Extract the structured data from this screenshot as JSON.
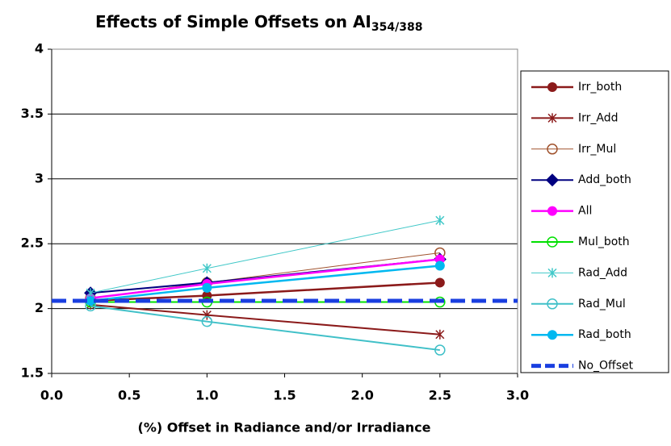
{
  "chart_data": {
    "type": "line",
    "title": "Effects of Simple Offsets on AI",
    "title_subscript": "354/388",
    "x_label": "(%) Offset in Radiance and/or Irradiance",
    "x": [
      0.25,
      1.0,
      2.5
    ],
    "xlim": [
      0,
      3
    ],
    "xticks": [
      {
        "value": 0,
        "label": "0.0"
      },
      {
        "value": 0.5,
        "label": "0.5"
      },
      {
        "value": 1,
        "label": "1.0"
      },
      {
        "value": 1.5,
        "label": "1.5"
      },
      {
        "value": 2,
        "label": "2.0"
      },
      {
        "value": 2.5,
        "label": "2.5"
      },
      {
        "value": 3,
        "label": "3.0"
      }
    ],
    "ylim": [
      1.5,
      4
    ],
    "yticks": [
      1.5,
      2,
      2.5,
      3,
      3.5,
      4
    ],
    "grid": true,
    "legend": "right",
    "series": [
      {
        "name": "Irr_both",
        "color": "#8b1a1a",
        "marker": "circle",
        "line_width": 2.5,
        "values": [
          2.06,
          2.1,
          2.2
        ]
      },
      {
        "name": "Irr_Add",
        "color": "#8b1a1a",
        "marker": "asterisk",
        "line_width": 2,
        "values": [
          2.03,
          1.95,
          1.8
        ]
      },
      {
        "name": "Irr_Mul",
        "color": "#a0522d",
        "marker": "open-circle",
        "line_width": 1,
        "values": [
          2.08,
          2.2,
          2.43
        ]
      },
      {
        "name": "Add_both",
        "color": "#000080",
        "marker": "diamond",
        "line_width": 2,
        "values": [
          2.12,
          2.2,
          2.38
        ]
      },
      {
        "name": "All",
        "color": "#ff00ff",
        "marker": "circle",
        "line_width": 2.5,
        "values": [
          2.08,
          2.19,
          2.38
        ]
      },
      {
        "name": "Mul_both",
        "color": "#00e000",
        "marker": "open-circle",
        "line_width": 2,
        "values": [
          2.05,
          2.05,
          2.05
        ]
      },
      {
        "name": "Rad_Add",
        "color": "#40c8c8",
        "marker": "asterisk",
        "line_width": 1,
        "values": [
          2.12,
          2.31,
          2.68
        ]
      },
      {
        "name": "Rad_Mul",
        "color": "#40c0c8",
        "marker": "open-circle",
        "line_width": 2,
        "values": [
          2.02,
          1.9,
          1.68
        ]
      },
      {
        "name": "Rad_both",
        "color": "#00b8f0",
        "marker": "circle",
        "line_width": 2.5,
        "values": [
          2.06,
          2.16,
          2.33
        ]
      },
      {
        "name": "No_Offset",
        "color": "#1a3fe0",
        "marker": "none",
        "line_width": 5,
        "dash": true,
        "x": [
          0,
          3
        ],
        "values": [
          2.06,
          2.06
        ]
      }
    ]
  }
}
